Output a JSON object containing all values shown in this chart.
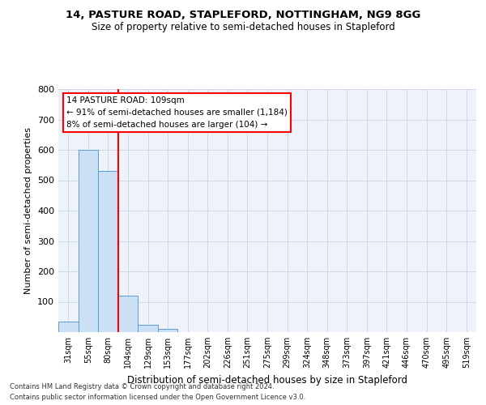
{
  "title1": "14, PASTURE ROAD, STAPLEFORD, NOTTINGHAM, NG9 8GG",
  "title2": "Size of property relative to semi-detached houses in Stapleford",
  "xlabel": "Distribution of semi-detached houses by size in Stapleford",
  "ylabel": "Number of semi-detached properties",
  "categories": [
    "31sqm",
    "55sqm",
    "80sqm",
    "104sqm",
    "129sqm",
    "153sqm",
    "177sqm",
    "202sqm",
    "226sqm",
    "251sqm",
    "275sqm",
    "299sqm",
    "324sqm",
    "348sqm",
    "373sqm",
    "397sqm",
    "421sqm",
    "446sqm",
    "470sqm",
    "495sqm",
    "519sqm"
  ],
  "values": [
    35,
    600,
    530,
    120,
    25,
    10,
    0,
    0,
    0,
    0,
    0,
    0,
    0,
    0,
    0,
    0,
    0,
    0,
    0,
    0,
    0
  ],
  "bar_color": "#cce0f5",
  "bar_edge_color": "#5b9bd5",
  "bar_width": 1.0,
  "annotation_text1": "14 PASTURE ROAD: 109sqm",
  "annotation_text2": "← 91% of semi-detached houses are smaller (1,184)",
  "annotation_text3": "8% of semi-detached houses are larger (104) →",
  "annotation_box_color": "white",
  "annotation_box_edge": "red",
  "red_line_color": "red",
  "grid_color": "#d0d8e8",
  "background_color": "#eef2fa",
  "ylim": [
    0,
    800
  ],
  "yticks": [
    0,
    100,
    200,
    300,
    400,
    500,
    600,
    700,
    800
  ],
  "footer1": "Contains HM Land Registry data © Crown copyright and database right 2024.",
  "footer2": "Contains public sector information licensed under the Open Government Licence v3.0."
}
